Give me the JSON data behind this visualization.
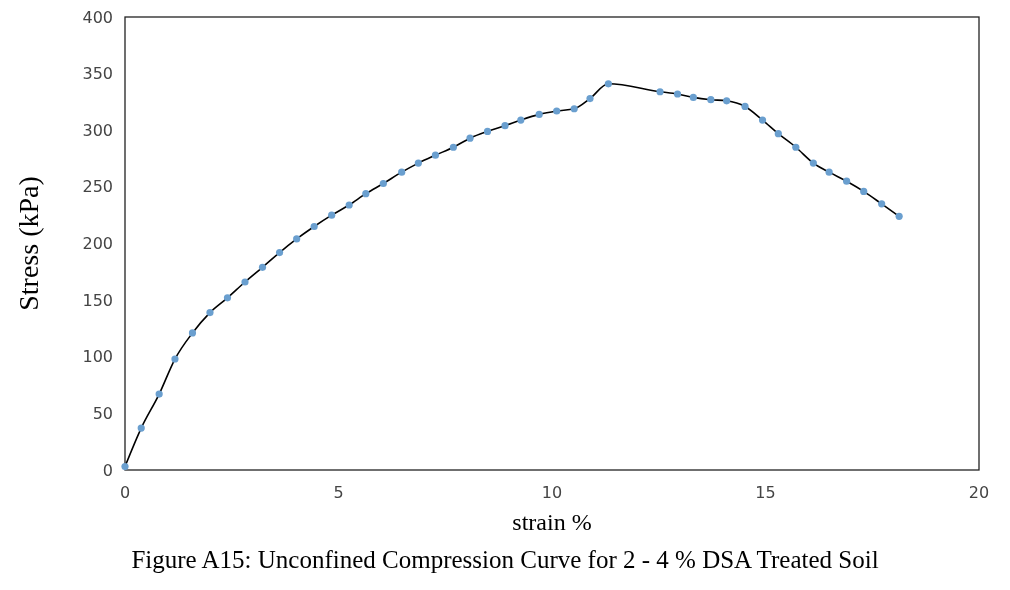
{
  "chart_data": {
    "type": "scatter",
    "xlabel": "strain %",
    "ylabel": "Stress (kPa)",
    "annotations": [
      "Figure A15: Unconfined Compression Curve for 2 - 4 % DSA Treated Soil"
    ],
    "xlim": [
      0,
      20
    ],
    "xticks": [
      0,
      5,
      10,
      15,
      20
    ],
    "ylim": [
      0,
      400
    ],
    "yticks": [
      0,
      50,
      100,
      150,
      200,
      250,
      300,
      350,
      400
    ],
    "grid": false,
    "series": [
      {
        "type": "line",
        "color": "#000000",
        "marker": "none",
        "line_style": "solid",
        "x": [
          0,
          0.38,
          0.8,
          1.17,
          1.58,
          1.99,
          2.4,
          2.81,
          3.22,
          3.62,
          4.02,
          4.43,
          4.84,
          5.25,
          5.64,
          6.05,
          6.48,
          6.87,
          7.27,
          7.69,
          8.08,
          8.49,
          8.9,
          9.27,
          9.7,
          10.11,
          10.52,
          10.89,
          11.32,
          12.53,
          12.94,
          13.31,
          13.72,
          14.09,
          14.52,
          14.93,
          15.3,
          15.71,
          16.12,
          16.49,
          16.9,
          17.3,
          17.72,
          18.13
        ],
        "values": [
          3,
          37,
          67,
          98,
          121,
          139,
          152,
          166,
          179,
          192,
          204,
          215,
          225,
          234,
          244,
          253,
          263,
          271,
          278,
          285,
          293,
          299,
          304,
          309,
          314,
          317,
          319,
          328,
          341,
          334,
          332,
          329,
          327,
          326,
          321,
          309,
          297,
          285,
          271,
          263,
          255,
          246,
          235,
          224
        ]
      },
      {
        "color": "#6a9fcf",
        "marker": "circle",
        "x": [
          0,
          0.38,
          0.8,
          1.17,
          1.58,
          1.99,
          2.4,
          2.81,
          3.22,
          3.62,
          4.02,
          4.43,
          4.84,
          5.25,
          5.64,
          6.05,
          6.48,
          6.87,
          7.27,
          7.69,
          8.08,
          8.49,
          8.9,
          9.27,
          9.7,
          10.11,
          10.52,
          10.89,
          11.32,
          12.53,
          12.94,
          13.31,
          13.72,
          14.09,
          14.52,
          14.93,
          15.3,
          15.71,
          16.12,
          16.49,
          16.9,
          17.3,
          17.72,
          18.13
        ],
        "values": [
          3,
          37,
          67,
          98,
          121,
          139,
          152,
          166,
          179,
          192,
          204,
          215,
          225,
          234,
          244,
          253,
          263,
          271,
          278,
          285,
          293,
          299,
          304,
          309,
          314,
          317,
          319,
          328,
          341,
          334,
          332,
          329,
          327,
          326,
          321,
          309,
          297,
          285,
          271,
          263,
          255,
          246,
          235,
          224
        ]
      }
    ]
  }
}
